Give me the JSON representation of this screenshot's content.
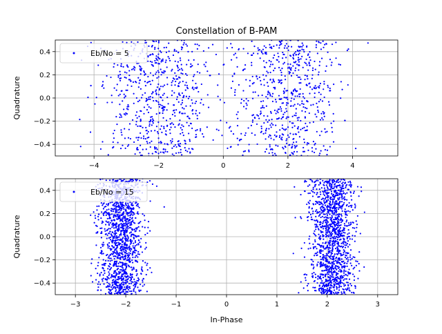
{
  "chart_data": [
    {
      "type": "scatter",
      "title": "Constellation of B-PAM",
      "xlabel": "",
      "ylabel": "Quadrature",
      "xlim": [
        -5.2,
        5.4
      ],
      "ylim": [
        -0.5,
        0.5
      ],
      "xticks": [
        -4,
        -2,
        0,
        2,
        4
      ],
      "yticks": [
        -0.4,
        -0.2,
        0.0,
        0.2,
        0.4
      ],
      "grid": true,
      "legend_position": "top-left",
      "series": [
        {
          "name": "Eb/No = 5",
          "color": "#0000ff",
          "marker": "point",
          "distribution": {
            "clusters": [
              {
                "x_center": -2.0,
                "x_std": 0.85,
                "y_range": [
                  -0.5,
                  0.5
                ],
                "count": 750
              },
              {
                "x_center": 2.0,
                "x_std": 0.85,
                "y_range": [
                  -0.5,
                  0.5
                ],
                "count": 750
              }
            ],
            "x_range": [
              -5.0,
              4.6
            ]
          }
        }
      ]
    },
    {
      "type": "scatter",
      "title": "",
      "xlabel": "In-Phase",
      "ylabel": "Quadrature",
      "xlim": [
        -3.4,
        3.4
      ],
      "ylim": [
        -0.5,
        0.5
      ],
      "xticks": [
        -3,
        -2,
        -1,
        0,
        1,
        2,
        3
      ],
      "yticks": [
        -0.4,
        -0.2,
        0.0,
        0.2,
        0.4
      ],
      "grid": true,
      "legend_position": "top-left",
      "series": [
        {
          "name": "Eb/No = 15",
          "color": "#0000ff",
          "marker": "point",
          "distribution": {
            "clusters": [
              {
                "x_center": -2.1,
                "x_std": 0.22,
                "y_range": [
                  -0.5,
                  0.5
                ],
                "count": 1600
              },
              {
                "x_center": 2.1,
                "x_std": 0.22,
                "y_range": [
                  -0.5,
                  0.5
                ],
                "count": 1600
              }
            ],
            "x_range": [
              -3.2,
              3.1
            ]
          }
        }
      ]
    }
  ]
}
